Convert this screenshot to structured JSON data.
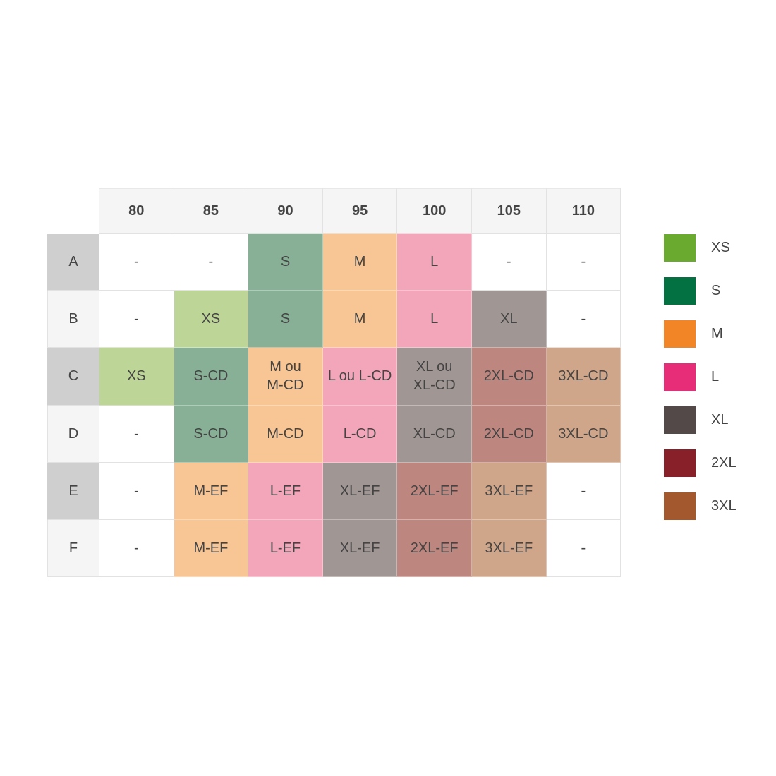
{
  "columns": [
    "80",
    "85",
    "90",
    "95",
    "100",
    "105",
    "110"
  ],
  "colors": {
    "cells": {
      "XS": "#bdd597",
      "S": "#88b096",
      "M": "#f8c595",
      "L": "#f3a6ba",
      "XL": "#a09694",
      "2XL": "#bd8780",
      "3XL": "#d0a68a",
      "none": "#ffffff"
    }
  },
  "rows": [
    {
      "label": "A",
      "cells": [
        [
          "-",
          "none"
        ],
        [
          "-",
          "none"
        ],
        [
          "S",
          "S"
        ],
        [
          "M",
          "M"
        ],
        [
          "L",
          "L"
        ],
        [
          "-",
          "none"
        ],
        [
          "-",
          "none"
        ]
      ]
    },
    {
      "label": "B",
      "cells": [
        [
          "-",
          "none"
        ],
        [
          "XS",
          "XS"
        ],
        [
          "S",
          "S"
        ],
        [
          "M",
          "M"
        ],
        [
          "L",
          "L"
        ],
        [
          "XL",
          "XL"
        ],
        [
          "-",
          "none"
        ]
      ]
    },
    {
      "label": "C",
      "cells": [
        [
          "XS",
          "XS"
        ],
        [
          "S-CD",
          "S"
        ],
        [
          "M ou\nM-CD",
          "M"
        ],
        [
          "L ou L-CD",
          "L"
        ],
        [
          "XL ou\nXL-CD",
          "XL"
        ],
        [
          "2XL-CD",
          "2XL"
        ],
        [
          "3XL-CD",
          "3XL"
        ]
      ]
    },
    {
      "label": "D",
      "cells": [
        [
          "-",
          "none"
        ],
        [
          "S-CD",
          "S"
        ],
        [
          "M-CD",
          "M"
        ],
        [
          "L-CD",
          "L"
        ],
        [
          "XL-CD",
          "XL"
        ],
        [
          "2XL-CD",
          "2XL"
        ],
        [
          "3XL-CD",
          "3XL"
        ]
      ]
    },
    {
      "label": "E",
      "cells": [
        [
          "-",
          "none"
        ],
        [
          "M-EF",
          "M"
        ],
        [
          "L-EF",
          "L"
        ],
        [
          "XL-EF",
          "XL"
        ],
        [
          "2XL-EF",
          "2XL"
        ],
        [
          "3XL-EF",
          "3XL"
        ],
        [
          "-",
          "none"
        ]
      ]
    },
    {
      "label": "F",
      "cells": [
        [
          "-",
          "none"
        ],
        [
          "M-EF",
          "M"
        ],
        [
          "L-EF",
          "L"
        ],
        [
          "XL-EF",
          "XL"
        ],
        [
          "2XL-EF",
          "2XL"
        ],
        [
          "3XL-EF",
          "3XL"
        ],
        [
          "-",
          "none"
        ]
      ]
    }
  ],
  "legend": [
    {
      "label": "XS",
      "color": "#6aab2f"
    },
    {
      "label": "S",
      "color": "#037142"
    },
    {
      "label": "M",
      "color": "#f28525"
    },
    {
      "label": "L",
      "color": "#e72d78"
    },
    {
      "label": "XL",
      "color": "#524948"
    },
    {
      "label": "2XL",
      "color": "#88202a"
    },
    {
      "label": "3XL",
      "color": "#a3582d"
    }
  ]
}
